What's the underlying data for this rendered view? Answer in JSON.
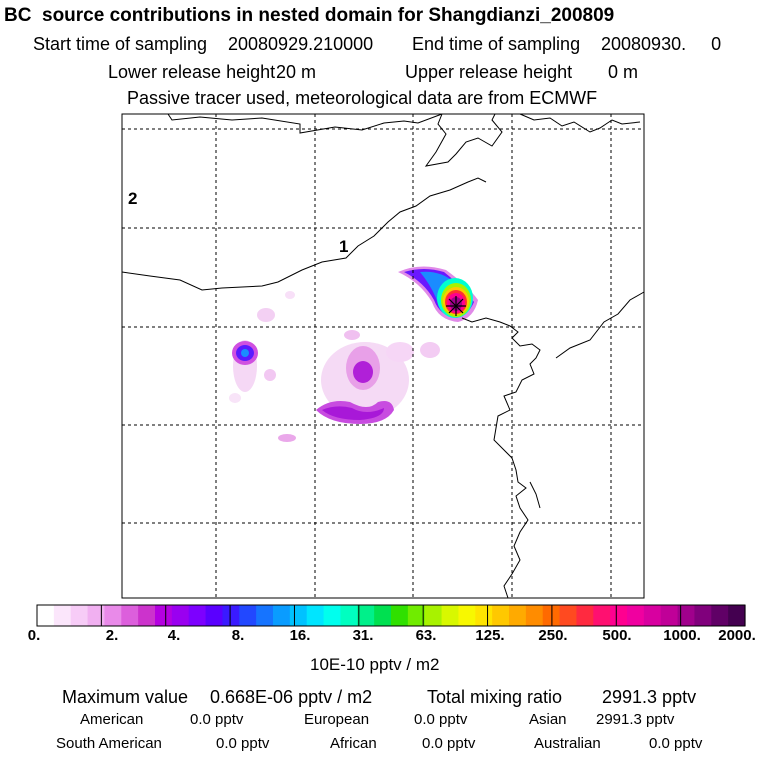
{
  "header": {
    "title": "BC  source contributions in nested domain for Shangdianzi_200809",
    "start_label": "Start time of sampling",
    "start_value": "20080929.210000",
    "end_label": "End time of sampling",
    "end_value": "20080930.     0",
    "lower_label": "Lower release height",
    "lower_value": "20 m",
    "upper_label": "Upper release height",
    "upper_value": "0 m",
    "note": "Passive tracer used, meteorological data are from ECMWF"
  },
  "map": {
    "label_1": "1",
    "label_2": "2"
  },
  "chart_data": {
    "type": "heatmap",
    "title": "BC  source contributions in nested domain for Shangdianzi_200809",
    "colorbar_ticks": [
      "0.",
      "2.",
      "4.",
      "8.",
      "16.",
      "31.",
      "63.",
      "125.",
      "250.",
      "500.",
      "1000.",
      "2000."
    ],
    "colorbar_colors": [
      "#ffffff",
      "#fbe6fb",
      "#f7ccf7",
      "#f1b0f1",
      "#e98ae9",
      "#dc5fdc",
      "#cc33cc",
      "#b400e0",
      "#9a00f0",
      "#7d00ff",
      "#5a00ff",
      "#3a1aff",
      "#2248ff",
      "#1674ff",
      "#0a9cff",
      "#00c2ff",
      "#00e5ff",
      "#00ffee",
      "#00ffc0",
      "#00f08a",
      "#00e050",
      "#30e000",
      "#70ec00",
      "#a8f200",
      "#d8f800",
      "#f8f800",
      "#ffe400",
      "#ffc800",
      "#ffaa00",
      "#ff8c00",
      "#ff6a00",
      "#ff4a20",
      "#ff2a40",
      "#ff1070",
      "#ff0090",
      "#f000a0",
      "#d800a0",
      "#c00098",
      "#a0008c",
      "#80007c",
      "#600066",
      "#440050"
    ],
    "unit": "10E-10 pptv / m2",
    "receptor": "Shangdianzi",
    "regions": [
      "1",
      "2"
    ],
    "max_label": "Maximum value",
    "max_value": "0.668E-06 pptv / m2",
    "total_label": "Total mixing ratio",
    "total_value": "2991.3 pptv",
    "contributions": [
      {
        "name": "American",
        "value": "0.0 pptv"
      },
      {
        "name": "European",
        "value": "0.0 pptv"
      },
      {
        "name": "Asian",
        "value": "2991.3 pptv"
      },
      {
        "name": "South American",
        "value": "0.0 pptv"
      },
      {
        "name": "African",
        "value": "0.0 pptv"
      },
      {
        "name": "Australian",
        "value": "0.0 pptv"
      }
    ]
  }
}
